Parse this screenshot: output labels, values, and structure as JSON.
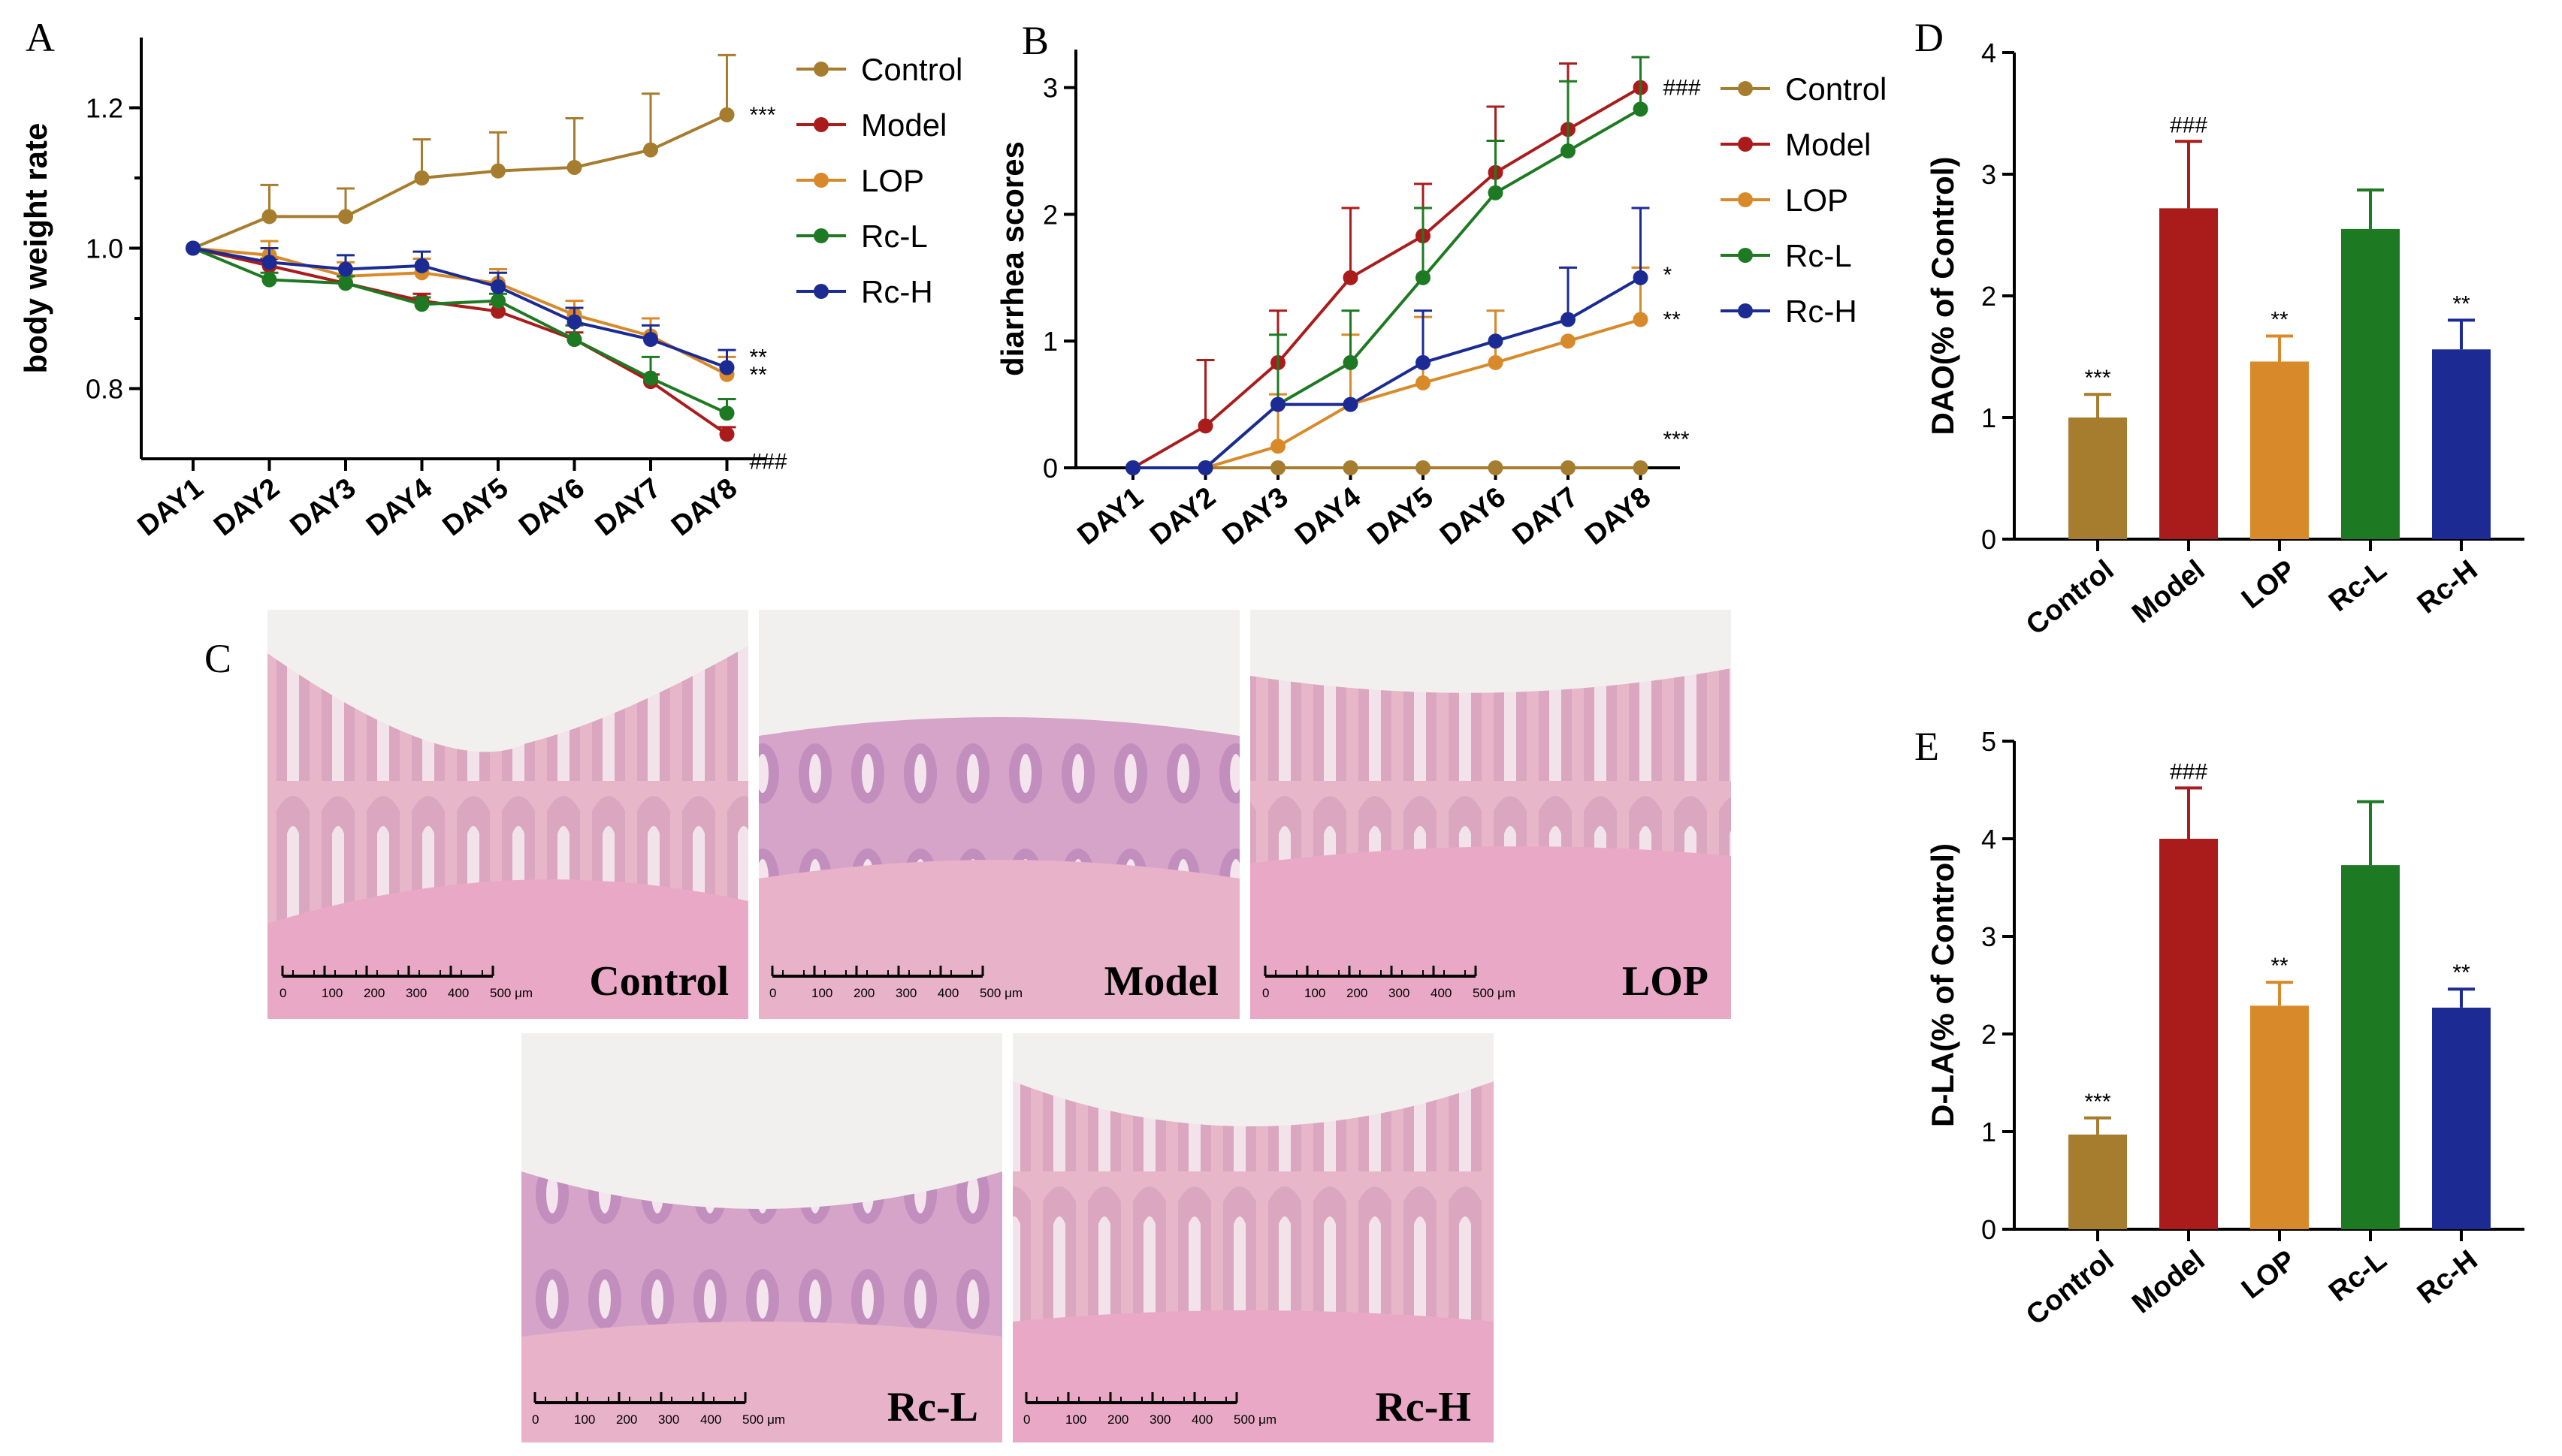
{
  "colors": {
    "Control": "#A67C2E",
    "Model": "#AA1C1C",
    "LOP": "#D88A2A",
    "Rc-L": "#1E7A22",
    "Rc-H": "#1C2B94"
  },
  "histology_colors": {
    "tissue": "#e8b6c9",
    "background": "#f2efef",
    "crypt": "#c497c0"
  },
  "histology": {
    "panel_label": "C",
    "scale_ticks": [
      "0",
      "100",
      "200",
      "300",
      "400",
      "500 μm"
    ],
    "images": [
      {
        "label": "Control"
      },
      {
        "label": "Model"
      },
      {
        "label": "LOP"
      },
      {
        "label": "Rc-L"
      },
      {
        "label": "Rc-H"
      }
    ]
  },
  "chart_data": [
    {
      "panel": "A",
      "type": "line",
      "ylabel": "body weight rate",
      "xlabel": "",
      "ylim": [
        0.7,
        1.3
      ],
      "yticks": [
        "0.8",
        "1.0",
        "1.2"
      ],
      "yticks_values": [
        0.8,
        1.0,
        1.2
      ],
      "categories": [
        "DAY1",
        "DAY2",
        "DAY3",
        "DAY4",
        "DAY5",
        "DAY6",
        "DAY7",
        "DAY8"
      ],
      "legend": [
        "Control",
        "Model",
        "LOP",
        "Rc-L",
        "Rc-H"
      ],
      "series": [
        {
          "name": "Control",
          "values": [
            1.0,
            1.045,
            1.045,
            1.1,
            1.11,
            1.115,
            1.14,
            1.19
          ],
          "errors": [
            0,
            0.045,
            0.04,
            0.055,
            0.055,
            0.07,
            0.08,
            0.085
          ]
        },
        {
          "name": "Model",
          "values": [
            1.0,
            0.975,
            0.95,
            0.925,
            0.91,
            0.87,
            0.81,
            0.735
          ],
          "errors": [
            0,
            0.01,
            0.01,
            0.01,
            0.01,
            0.01,
            0.01,
            0.01
          ]
        },
        {
          "name": "LOP",
          "values": [
            1.0,
            0.99,
            0.96,
            0.965,
            0.95,
            0.905,
            0.875,
            0.82
          ],
          "errors": [
            0,
            0.02,
            0.02,
            0.02,
            0.02,
            0.02,
            0.025,
            0.025
          ]
        },
        {
          "name": "Rc-L",
          "values": [
            1.0,
            0.955,
            0.95,
            0.92,
            0.925,
            0.87,
            0.815,
            0.765
          ],
          "errors": [
            0,
            0.01,
            0.01,
            0.01,
            0.01,
            0.02,
            0.03,
            0.02
          ]
        },
        {
          "name": "Rc-H",
          "values": [
            1.0,
            0.98,
            0.97,
            0.975,
            0.945,
            0.895,
            0.87,
            0.83
          ],
          "errors": [
            0,
            0.02,
            0.02,
            0.02,
            0.02,
            0.02,
            0.02,
            0.025
          ]
        }
      ],
      "annotations": [
        {
          "series": "Control",
          "text": "***"
        },
        {
          "series": "Rc-H",
          "text": "**"
        },
        {
          "series": "LOP",
          "text": "**"
        },
        {
          "series": "Model",
          "text": "###"
        }
      ]
    },
    {
      "panel": "B",
      "type": "line",
      "ylabel": "diarrhea scores",
      "xlabel": "",
      "ylim": [
        0,
        3.3
      ],
      "yticks": [
        "0",
        "1",
        "2",
        "3"
      ],
      "yticks_values": [
        0,
        1,
        2,
        3
      ],
      "categories": [
        "DAY1",
        "DAY2",
        "DAY3",
        "DAY4",
        "DAY5",
        "DAY6",
        "DAY7",
        "DAY8"
      ],
      "legend": [
        "Control",
        "Model",
        "LOP",
        "Rc-L",
        "Rc-H"
      ],
      "series": [
        {
          "name": "Control",
          "values": [
            0,
            0,
            0,
            0,
            0,
            0,
            0,
            0
          ],
          "errors": [
            0,
            0,
            0,
            0,
            0,
            0,
            0,
            0
          ]
        },
        {
          "name": "Model",
          "values": [
            0,
            0.33,
            0.83,
            1.5,
            1.83,
            2.33,
            2.67,
            3.0
          ],
          "errors": [
            0,
            0.52,
            0.41,
            0.55,
            0.41,
            0.52,
            0.52,
            0
          ]
        },
        {
          "name": "LOP",
          "values": [
            0,
            0,
            0.17,
            0.5,
            0.67,
            0.83,
            1.0,
            1.17
          ],
          "errors": [
            0,
            0,
            0.41,
            0.55,
            0.52,
            0.41,
            0,
            0.41
          ]
        },
        {
          "name": "Rc-L",
          "values": [
            0,
            0,
            0.5,
            0.83,
            1.5,
            2.17,
            2.5,
            2.83
          ],
          "errors": [
            0,
            0,
            0.55,
            0.41,
            0.55,
            0.41,
            0.55,
            0.41
          ]
        },
        {
          "name": "Rc-H",
          "values": [
            0,
            0,
            0.5,
            0.5,
            0.83,
            1.0,
            1.17,
            1.5
          ],
          "errors": [
            0,
            0,
            0,
            0,
            0.41,
            0,
            0.41,
            0.55
          ]
        }
      ],
      "annotations": [
        {
          "series": "Model",
          "text": "###"
        },
        {
          "series": "Rc-H",
          "text": "*"
        },
        {
          "series": "LOP",
          "text": "**"
        },
        {
          "series": "Control",
          "text": "***"
        }
      ]
    },
    {
      "panel": "D",
      "type": "bar",
      "ylabel": "DAO(% of Control)",
      "xlabel": "",
      "ylim": [
        0,
        4
      ],
      "yticks": [
        "0",
        "1",
        "2",
        "3",
        "4"
      ],
      "yticks_values": [
        0,
        1,
        2,
        3,
        4
      ],
      "categories": [
        "Control",
        "Model",
        "LOP",
        "Rc-L",
        "Rc-H"
      ],
      "values": [
        1.0,
        2.72,
        1.46,
        2.55,
        1.56
      ],
      "errors": [
        0.19,
        0.55,
        0.21,
        0.32,
        0.24
      ],
      "annotations": [
        "***",
        "###",
        "**",
        "",
        "**"
      ]
    },
    {
      "panel": "E",
      "type": "bar",
      "ylabel": "D-LA(% of Control)",
      "xlabel": "",
      "ylim": [
        0,
        5
      ],
      "yticks": [
        "0",
        "1",
        "2",
        "3",
        "4",
        "5"
      ],
      "yticks_values": [
        0,
        1,
        2,
        3,
        4,
        5
      ],
      "categories": [
        "Control",
        "Model",
        "LOP",
        "Rc-L",
        "Rc-H"
      ],
      "values": [
        0.97,
        4.0,
        2.29,
        3.73,
        2.27
      ],
      "errors": [
        0.17,
        0.52,
        0.24,
        0.65,
        0.19
      ],
      "annotations": [
        "***",
        "###",
        "**",
        "",
        "**"
      ]
    }
  ]
}
